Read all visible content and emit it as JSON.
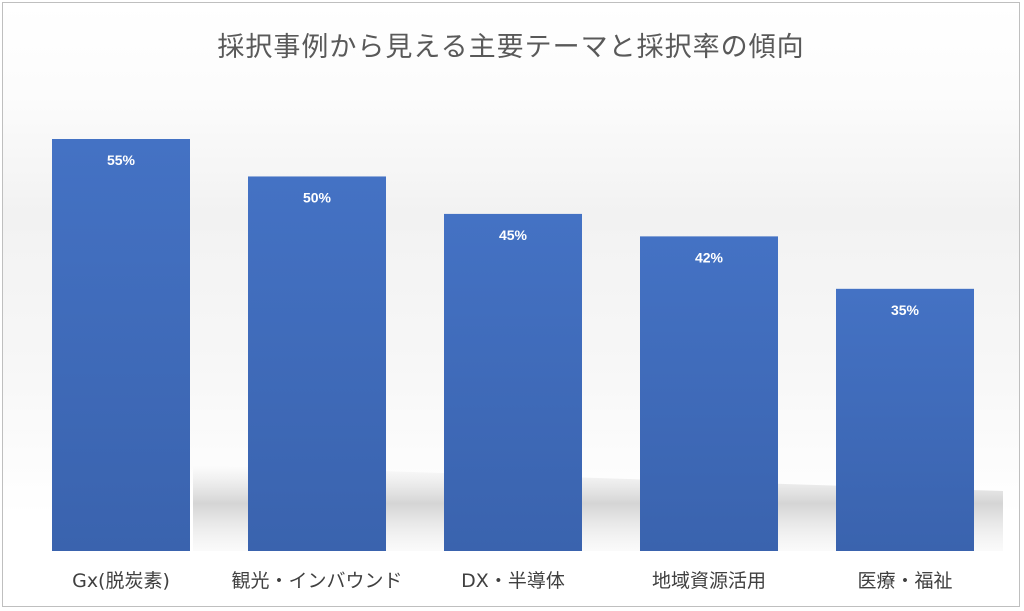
{
  "chart_data": {
    "type": "bar",
    "title": "採択事例から見える主要テーマと採択率の傾向",
    "categories": [
      "Gx(脱炭素)",
      "観光・インバウンド",
      "DX・半導体",
      "地域資源活用",
      "医療・福祉"
    ],
    "values": [
      55,
      50,
      45,
      42,
      35
    ],
    "data_labels": [
      "55%",
      "50%",
      "45%",
      "42%",
      "35%"
    ],
    "unit": "%",
    "ylim": [
      0,
      100
    ],
    "grid": false,
    "legend": "none",
    "bar_color_top": "#4472C4",
    "bar_color_bottom": "#3A63AE"
  }
}
